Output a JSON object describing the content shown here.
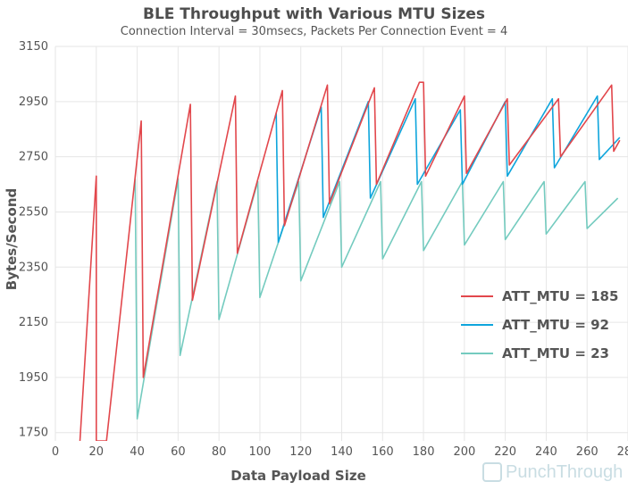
{
  "title": "BLE Throughput with Various MTU Sizes",
  "subtitle": "Connection Interval = 30msecs, Packets Per Connection Event = 4",
  "watermark": "PunchThrough",
  "colors": {
    "mtu185": "#e2474c",
    "mtu92": "#0ea5dc",
    "mtu23": "#74cbbf",
    "grid": "#e6e6e6"
  },
  "chart_data": {
    "type": "line",
    "title": "BLE Throughput with Various MTU Sizes",
    "subtitle": "Connection Interval = 30msecs, Packets Per Connection Event = 4",
    "xlabel": "Data Payload Size",
    "ylabel": "Bytes/Second",
    "xlim": [
      0,
      280
    ],
    "ylim": [
      1720,
      3150
    ],
    "xticks": [
      "0",
      "20",
      "40",
      "60",
      "80",
      "100",
      "120",
      "140",
      "160",
      "180",
      "200",
      "220",
      "240",
      "260",
      "280"
    ],
    "yticks": [
      "3150",
      "2950",
      "2750",
      "2550",
      "2350",
      "2150",
      "1950",
      "1750"
    ],
    "grid": true,
    "legend_position": "right",
    "series": [
      {
        "name": "ATT_MTU = 185",
        "points": [
          [
            12,
            1720
          ],
          [
            20,
            2680
          ],
          [
            20,
            1720
          ],
          [
            25,
            1720
          ],
          [
            42,
            2880
          ],
          [
            43,
            1950
          ],
          [
            66,
            2940
          ],
          [
            67,
            2230
          ],
          [
            88,
            2970
          ],
          [
            89,
            2400
          ],
          [
            111,
            2990
          ],
          [
            112,
            2500
          ],
          [
            133,
            3010
          ],
          [
            134,
            2580
          ],
          [
            156,
            3000
          ],
          [
            157,
            2650
          ],
          [
            178,
            3020
          ],
          [
            180,
            3020
          ],
          [
            181,
            2680
          ],
          [
            200,
            2970
          ],
          [
            201,
            2690
          ],
          [
            221,
            2960
          ],
          [
            222,
            2720
          ],
          [
            246,
            2960
          ],
          [
            247,
            2750
          ],
          [
            272,
            3010
          ],
          [
            273,
            2770
          ],
          [
            276,
            2810
          ]
        ]
      },
      {
        "name": "ATT_MTU = 92",
        "points": [
          [
            108,
            2910
          ],
          [
            109,
            2440
          ],
          [
            130,
            2930
          ],
          [
            131,
            2530
          ],
          [
            153,
            2950
          ],
          [
            154,
            2600
          ],
          [
            176,
            2960
          ],
          [
            177,
            2650
          ],
          [
            198,
            2920
          ],
          [
            199,
            2650
          ],
          [
            220,
            2950
          ],
          [
            221,
            2680
          ],
          [
            243,
            2960
          ],
          [
            244,
            2710
          ],
          [
            265,
            2970
          ],
          [
            266,
            2740
          ],
          [
            276,
            2820
          ]
        ]
      },
      {
        "name": "ATT_MTU = 23",
        "points": [
          [
            39,
            2670
          ],
          [
            40,
            1800
          ],
          [
            60,
            2670
          ],
          [
            61,
            2030
          ],
          [
            79,
            2660
          ],
          [
            80,
            2160
          ],
          [
            99,
            2660
          ],
          [
            100,
            2240
          ],
          [
            119,
            2660
          ],
          [
            120,
            2300
          ],
          [
            139,
            2660
          ],
          [
            140,
            2350
          ],
          [
            159,
            2660
          ],
          [
            160,
            2380
          ],
          [
            179,
            2660
          ],
          [
            180,
            2410
          ],
          [
            199,
            2660
          ],
          [
            200,
            2430
          ],
          [
            219,
            2660
          ],
          [
            220,
            2450
          ],
          [
            239,
            2660
          ],
          [
            240,
            2470
          ],
          [
            259,
            2660
          ],
          [
            260,
            2490
          ],
          [
            275,
            2600
          ]
        ]
      }
    ]
  }
}
